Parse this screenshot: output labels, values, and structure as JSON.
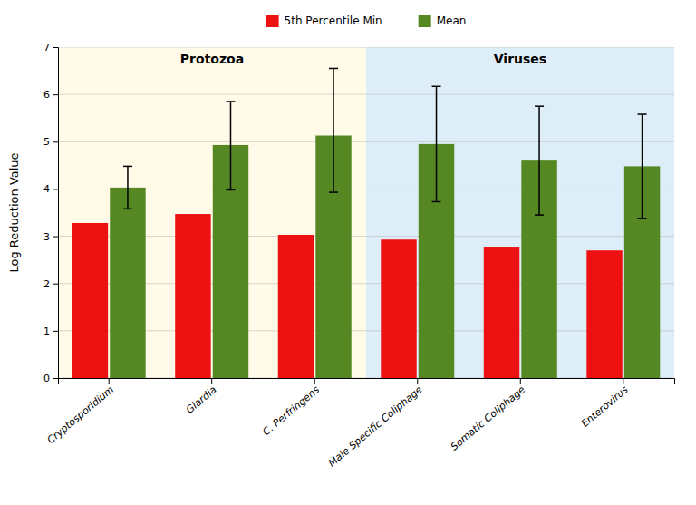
{
  "chart_data": {
    "type": "bar",
    "categories": [
      "Cryptosporidium",
      "Giardia",
      "C. Perfringens",
      "Male Specific Coliphage",
      "Somatic Coliphage",
      "Enterovirus"
    ],
    "series": [
      {
        "name": "5th Percentile Min",
        "color": "#ee1111",
        "values": [
          3.28,
          3.47,
          3.03,
          2.93,
          2.78,
          2.7
        ]
      },
      {
        "name": "Mean",
        "color": "#558822",
        "values": [
          4.03,
          4.93,
          5.13,
          4.95,
          4.6,
          4.48
        ],
        "error_low": [
          0.45,
          0.95,
          1.2,
          1.22,
          1.15,
          1.1
        ],
        "error_high": [
          0.45,
          0.92,
          1.42,
          1.22,
          1.15,
          1.1
        ]
      }
    ],
    "ylabel": "Log Reduction Value",
    "ylim": [
      0,
      7
    ],
    "yticks": [
      0,
      1,
      2,
      3,
      4,
      5,
      6,
      7
    ],
    "grid": true,
    "legend": "top",
    "annotations": [
      {
        "text": "Protozoa",
        "color": "#fffbe8",
        "from": "Cryptosporidium",
        "to": "C. Perfringens"
      },
      {
        "text": "Viruses",
        "color": "#ddeef8",
        "from": "Male Specific Coliphage",
        "to": "Enterovirus"
      }
    ]
  }
}
